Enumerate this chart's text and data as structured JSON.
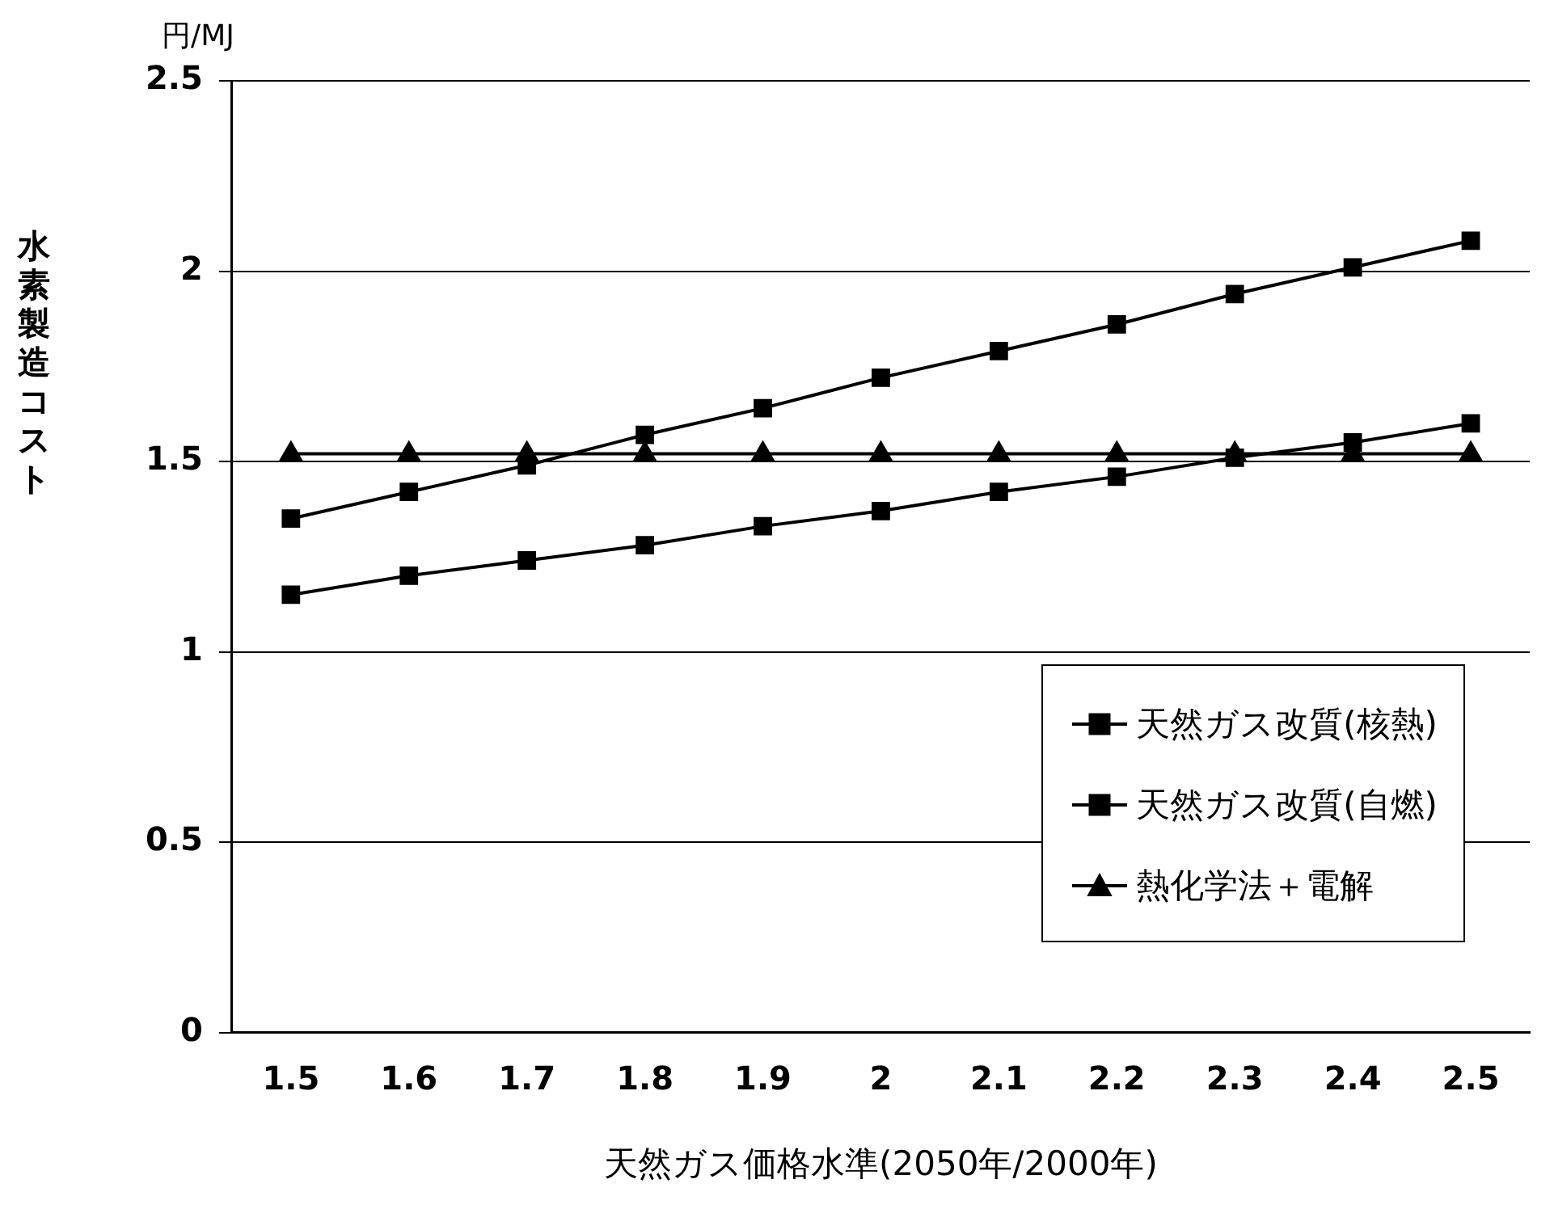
{
  "chart_data": {
    "type": "line",
    "ylabel": "水素製造コスト",
    "xlabel": "天然ガス価格水準(2050年/2000年)",
    "annotations": [
      "円/MJ"
    ],
    "categories": [
      "1.5",
      "1.6",
      "1.7",
      "1.8",
      "1.9",
      "2",
      "2.1",
      "2.2",
      "2.3",
      "2.4",
      "2.5"
    ],
    "series": [
      {
        "name": "天然ガス改質(核熱)",
        "color": "#000000",
        "marker": "square",
        "values": [
          1.15,
          1.2,
          1.24,
          1.28,
          1.33,
          1.37,
          1.42,
          1.46,
          1.51,
          1.55,
          1.6
        ]
      },
      {
        "name": "天然ガス改質(自燃)",
        "color": "#000000",
        "marker": "square",
        "values": [
          1.35,
          1.42,
          1.49,
          1.57,
          1.64,
          1.72,
          1.79,
          1.86,
          1.94,
          2.01,
          2.08
        ]
      },
      {
        "name": "熱化学法＋電解",
        "color": "#000000",
        "marker": "triangle",
        "values": [
          1.52,
          1.52,
          1.52,
          1.52,
          1.52,
          1.52,
          1.52,
          1.52,
          1.52,
          1.52,
          1.52
        ]
      }
    ],
    "ylim": [
      0,
      2.5
    ],
    "yticks": [
      0,
      0.5,
      1,
      1.5,
      2,
      2.5
    ],
    "grid": "y",
    "legend": "bottom right"
  }
}
